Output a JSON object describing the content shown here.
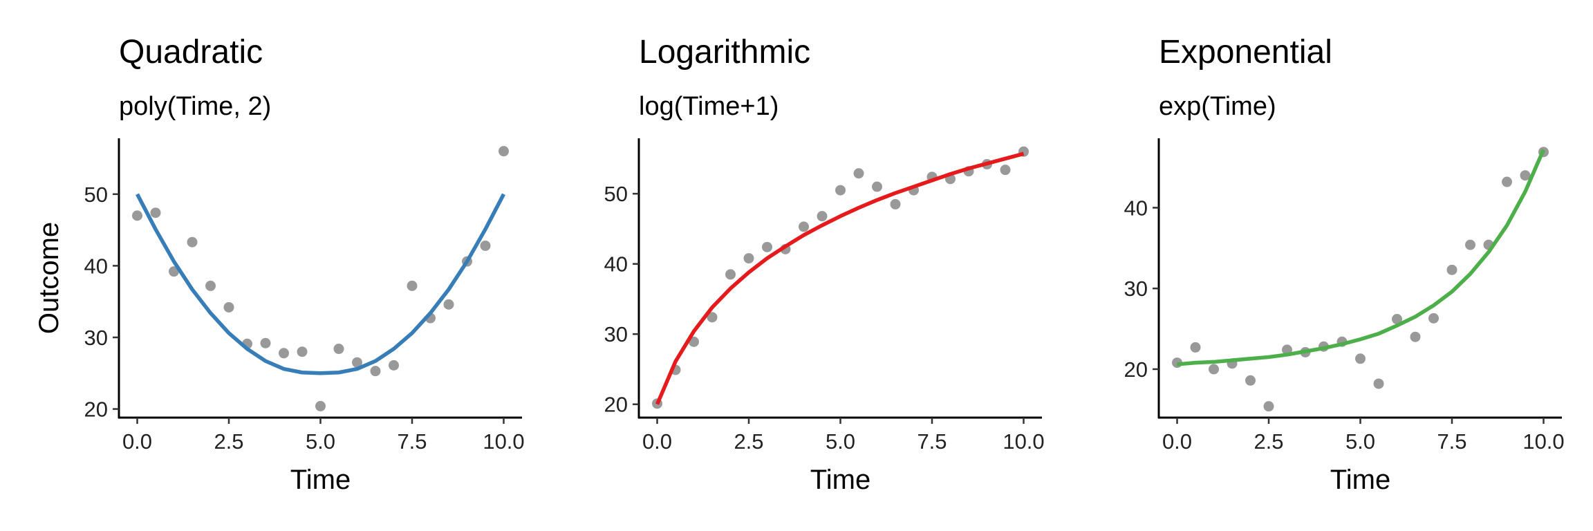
{
  "chart_data": [
    {
      "type": "scatter",
      "title": "Quadratic",
      "subtitle": "poly(Time, 2)",
      "xlabel": "Time",
      "ylabel": "Outcome",
      "xlim": [
        -0.5,
        10.5
      ],
      "ylim": [
        18.8,
        57.8
      ],
      "xticks": [
        0,
        2.5,
        5,
        7.5,
        10
      ],
      "xtick_labels": [
        "0.0",
        "2.5",
        "5.0",
        "7.5",
        "10.0"
      ],
      "yticks": [
        20,
        30,
        40,
        50
      ],
      "ytick_labels": [
        "20",
        "30",
        "40",
        "50"
      ],
      "grid": false,
      "fit_color": "#377EB8",
      "point_color": "#999999",
      "points": {
        "x": [
          0,
          0.5,
          1,
          1.5,
          2,
          2.5,
          3,
          3.5,
          4,
          4.5,
          5,
          5.5,
          6,
          6.5,
          7,
          7.5,
          8,
          8.5,
          9,
          9.5,
          10
        ],
        "y": [
          47,
          47.4,
          39.2,
          43.3,
          37.2,
          34.2,
          29.1,
          29.2,
          27.8,
          28.0,
          20.4,
          28.4,
          26.5,
          25.3,
          26.1,
          37.2,
          32.7,
          34.6,
          40.6,
          42.8,
          56.0
        ]
      },
      "fit": {
        "x": [
          0,
          0.5,
          1,
          1.5,
          2,
          2.5,
          3,
          3.5,
          4,
          4.5,
          5,
          5.5,
          6,
          6.5,
          7,
          7.5,
          8,
          8.5,
          9,
          9.5,
          10
        ],
        "y": [
          50.0,
          45.1,
          40.6,
          36.7,
          33.4,
          30.6,
          28.4,
          26.7,
          25.6,
          25.1,
          25.0,
          25.1,
          25.6,
          26.7,
          28.4,
          30.6,
          33.4,
          36.7,
          40.6,
          45.1,
          50.0
        ]
      }
    },
    {
      "type": "scatter",
      "title": "Logarithmic",
      "subtitle": "log(Time+1)",
      "xlabel": "Time",
      "ylabel": "",
      "xlim": [
        -0.5,
        10.5
      ],
      "ylim": [
        18.1,
        57.9
      ],
      "xticks": [
        0,
        2.5,
        5,
        7.5,
        10
      ],
      "xtick_labels": [
        "0.0",
        "2.5",
        "5.0",
        "7.5",
        "10.0"
      ],
      "yticks": [
        20,
        30,
        40,
        50
      ],
      "ytick_labels": [
        "20",
        "30",
        "40",
        "50"
      ],
      "grid": false,
      "fit_color": "#E41A1C",
      "point_color": "#999999",
      "points": {
        "x": [
          0,
          0.5,
          1,
          1.5,
          2,
          2.5,
          3,
          3.5,
          4,
          4.5,
          5,
          5.5,
          6,
          6.5,
          7,
          7.5,
          8,
          8.5,
          9,
          9.5,
          10
        ],
        "y": [
          20.1,
          24.9,
          28.9,
          32.4,
          38.5,
          40.8,
          42.4,
          42.1,
          45.3,
          46.8,
          50.5,
          52.9,
          51.0,
          48.5,
          50.5,
          52.4,
          52.1,
          53.2,
          54.2,
          53.4,
          56.0
        ]
      },
      "fit": {
        "x": [
          0,
          0.5,
          1,
          1.5,
          2,
          2.5,
          3,
          3.5,
          4,
          4.5,
          5,
          5.5,
          6,
          6.5,
          7,
          7.5,
          8,
          8.5,
          9,
          9.5,
          10
        ],
        "y": [
          20.0,
          26.1,
          30.4,
          33.8,
          36.5,
          38.8,
          40.8,
          42.5,
          44.1,
          45.5,
          46.8,
          48.0,
          49.1,
          50.1,
          51.0,
          51.9,
          52.8,
          53.6,
          54.3,
          55.0,
          55.7
        ]
      }
    },
    {
      "type": "scatter",
      "title": "Exponential",
      "subtitle": "exp(Time)",
      "xlabel": "Time",
      "ylabel": "",
      "xlim": [
        -0.5,
        10.5
      ],
      "ylim": [
        14.0,
        48.6
      ],
      "xticks": [
        0,
        2.5,
        5,
        7.5,
        10
      ],
      "xtick_labels": [
        "0.0",
        "2.5",
        "5.0",
        "7.5",
        "10.0"
      ],
      "yticks": [
        20,
        30,
        40
      ],
      "ytick_labels": [
        "20",
        "30",
        "40"
      ],
      "grid": false,
      "fit_color": "#4DAF4A",
      "point_color": "#999999",
      "points": {
        "x": [
          0,
          0.5,
          1,
          1.5,
          2,
          2.5,
          3,
          3.5,
          4,
          4.5,
          5,
          5.5,
          6,
          6.5,
          7,
          7.5,
          8,
          8.5,
          9,
          9.5,
          10
        ],
        "y": [
          20.8,
          22.7,
          20.0,
          20.7,
          18.6,
          15.4,
          22.4,
          22.1,
          22.8,
          23.4,
          21.3,
          18.2,
          26.2,
          24.0,
          26.3,
          32.3,
          35.4,
          35.4,
          43.2,
          44.0,
          46.9
        ]
      },
      "fit": {
        "x": [
          0,
          0.5,
          1,
          1.5,
          2,
          2.5,
          3,
          3.5,
          4,
          4.5,
          5,
          5.5,
          6,
          6.5,
          7,
          7.5,
          8,
          8.5,
          9,
          9.5,
          10
        ],
        "y": [
          20.6,
          20.8,
          20.9,
          21.1,
          21.3,
          21.5,
          21.8,
          22.2,
          22.6,
          23.1,
          23.7,
          24.4,
          25.4,
          26.5,
          27.9,
          29.6,
          31.8,
          34.5,
          37.8,
          42.0,
          47.2
        ]
      }
    }
  ]
}
